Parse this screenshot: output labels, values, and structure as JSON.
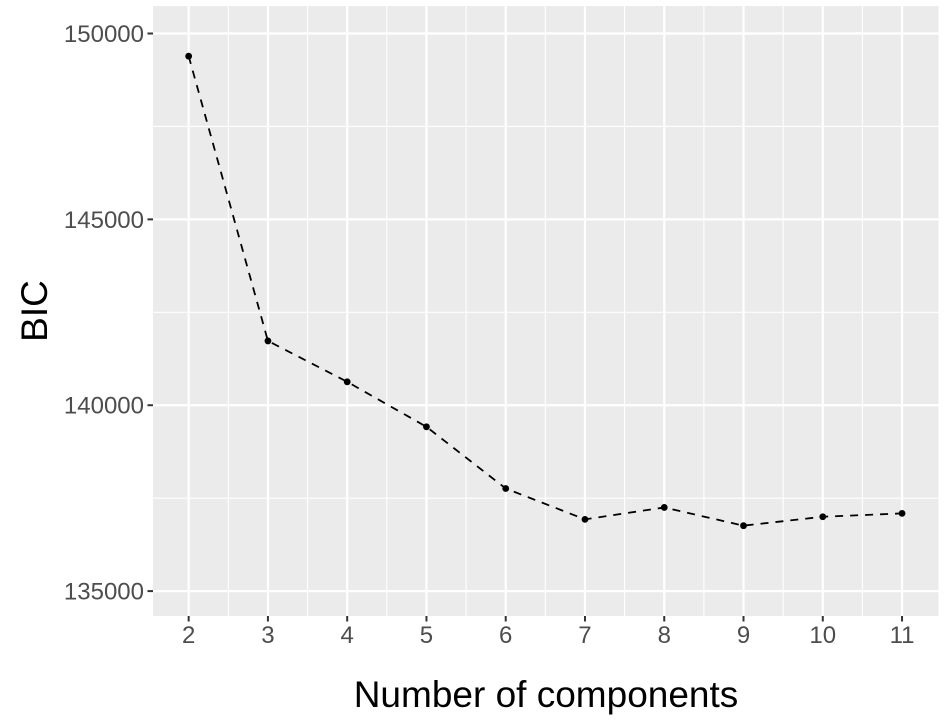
{
  "figure": {
    "xlabel": "Number of components",
    "ylabel": "BIC"
  },
  "chart_data": {
    "type": "line",
    "title": "",
    "xlabel": "Number of components",
    "ylabel": "BIC",
    "x": [
      2,
      3,
      4,
      5,
      6,
      7,
      8,
      9,
      10,
      11
    ],
    "series": [
      {
        "name": "BIC",
        "values": [
          149390,
          141730,
          140630,
          139420,
          137760,
          136930,
          137250,
          136760,
          137000,
          137090
        ]
      }
    ],
    "xticks": [
      2,
      3,
      4,
      5,
      6,
      7,
      8,
      9,
      10,
      11
    ],
    "xtick_labels": [
      "2",
      "3",
      "4",
      "5",
      "6",
      "7",
      "8",
      "9",
      "10",
      "11"
    ],
    "yticks": [
      135000,
      140000,
      145000,
      150000
    ],
    "ytick_labels": [
      "135000",
      "140000",
      "145000",
      "150000"
    ],
    "x_minor_ticks": [
      2.5,
      3.5,
      4.5,
      5.5,
      6.5,
      7.5,
      8.5,
      9.5,
      10.5
    ],
    "y_minor_ticks": [
      137500,
      142500,
      147500
    ],
    "xlim": [
      1.55,
      11.46
    ],
    "ylim": [
      134330,
      150740
    ],
    "grid": true,
    "legend_position": "none",
    "line_style": "dashed",
    "marker": "point",
    "colors": {
      "figure_background": "#FFFFFF",
      "panel_background": "#EBEBEB",
      "gridline": "#FFFFFF",
      "line": "#000000",
      "marker": "#000000",
      "tick_label": "#4D4D4D",
      "axis_title": "#000000",
      "tick_mark": "#333333"
    }
  }
}
